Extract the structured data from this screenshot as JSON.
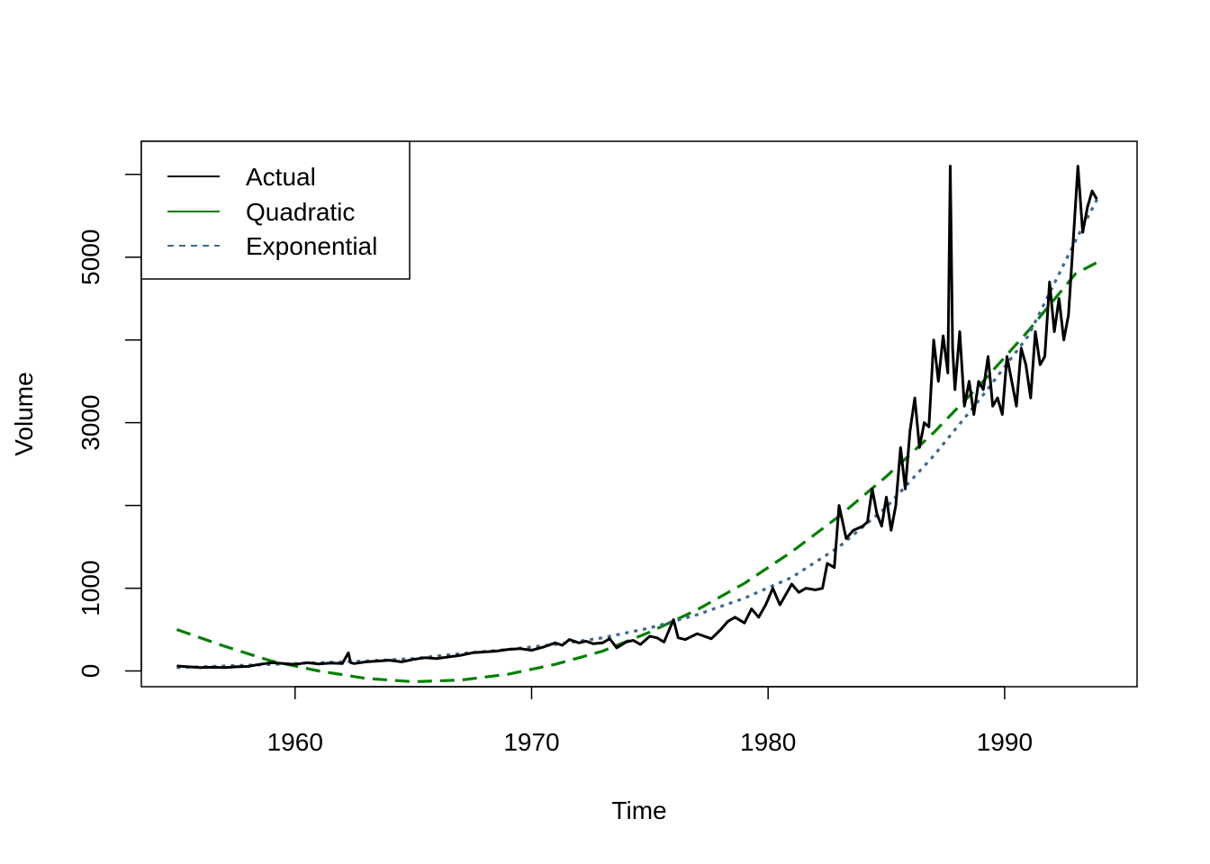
{
  "chart_data": {
    "type": "line",
    "title": "",
    "xlabel": "Time",
    "ylabel": "Volume",
    "xlim": [
      1953.5,
      1995.6
    ],
    "ylim": [
      -190,
      6400
    ],
    "xticks": [
      1960,
      1970,
      1980,
      1990
    ],
    "xtick_labels": [
      "1960",
      "1970",
      "1980",
      "1990"
    ],
    "yticks": [
      0,
      1000,
      2000,
      3000,
      4000,
      5000,
      6000
    ],
    "ytick_labels": [
      "0",
      "1000",
      "",
      "3000",
      "",
      "5000",
      ""
    ],
    "legend": {
      "position": "top-left",
      "entries": [
        {
          "label": "Actual",
          "color": "#000000",
          "style": "solid"
        },
        {
          "label": "Quadratic",
          "color": "#008000",
          "style": "dashed"
        },
        {
          "label": "Exponential",
          "color": "#3E6890",
          "style": "dotted"
        }
      ]
    },
    "series": [
      {
        "name": "Actual",
        "color": "#000000",
        "style": "solid",
        "x": [
          1955.0,
          1955.5,
          1956.0,
          1956.5,
          1957.0,
          1957.5,
          1958.0,
          1958.5,
          1959.0,
          1959.5,
          1960.0,
          1960.5,
          1961.0,
          1961.5,
          1962.0,
          1962.25,
          1962.35,
          1962.5,
          1963.0,
          1963.5,
          1964.0,
          1964.5,
          1965.0,
          1965.5,
          1966.0,
          1966.5,
          1967.0,
          1967.5,
          1968.0,
          1968.5,
          1969.0,
          1969.5,
          1970.0,
          1970.5,
          1971.0,
          1971.3,
          1971.6,
          1972.0,
          1972.3,
          1972.6,
          1973.0,
          1973.3,
          1973.6,
          1974.0,
          1974.3,
          1974.6,
          1975.0,
          1975.3,
          1975.6,
          1976.0,
          1976.2,
          1976.5,
          1977.0,
          1977.3,
          1977.6,
          1978.0,
          1978.3,
          1978.6,
          1979.0,
          1979.3,
          1979.6,
          1979.9,
          1980.2,
          1980.5,
          1980.8,
          1981.0,
          1981.3,
          1981.6,
          1982.0,
          1982.3,
          1982.5,
          1982.8,
          1983.0,
          1983.3,
          1983.6,
          1984.0,
          1984.2,
          1984.4,
          1984.6,
          1984.8,
          1985.0,
          1985.2,
          1985.4,
          1985.6,
          1985.8,
          1986.0,
          1986.2,
          1986.4,
          1986.6,
          1986.8,
          1987.0,
          1987.2,
          1987.4,
          1987.6,
          1987.7,
          1987.8,
          1987.9,
          1988.1,
          1988.3,
          1988.5,
          1988.7,
          1988.9,
          1989.1,
          1989.3,
          1989.5,
          1989.7,
          1989.9,
          1990.1,
          1990.3,
          1990.5,
          1990.7,
          1990.9,
          1991.1,
          1991.3,
          1991.5,
          1991.7,
          1991.9,
          1992.1,
          1992.3,
          1992.5,
          1992.7,
          1992.9,
          1993.1,
          1993.3,
          1993.5,
          1993.7,
          1993.9
        ],
        "values": [
          60,
          50,
          40,
          45,
          40,
          50,
          55,
          80,
          100,
          90,
          80,
          100,
          85,
          95,
          90,
          220,
          100,
          90,
          110,
          120,
          130,
          110,
          140,
          160,
          150,
          170,
          190,
          220,
          230,
          240,
          260,
          270,
          250,
          290,
          340,
          310,
          380,
          340,
          360,
          330,
          340,
          390,
          280,
          350,
          370,
          320,
          420,
          400,
          350,
          620,
          400,
          380,
          450,
          420,
          390,
          500,
          600,
          650,
          580,
          750,
          650,
          800,
          1000,
          800,
          950,
          1050,
          950,
          1000,
          980,
          1000,
          1300,
          1250,
          2000,
          1600,
          1700,
          1750,
          1800,
          2200,
          1900,
          1750,
          2100,
          1700,
          2000,
          2700,
          2200,
          2900,
          3300,
          2700,
          3000,
          2950,
          4000,
          3500,
          4050,
          3600,
          6100,
          3900,
          3400,
          4100,
          3200,
          3500,
          3100,
          3500,
          3400,
          3800,
          3200,
          3300,
          3100,
          3800,
          3500,
          3200,
          3900,
          3700,
          3300,
          4100,
          3700,
          3800,
          4700,
          4100,
          4500,
          4000,
          4300,
          5200,
          6100,
          5300,
          5600,
          5800,
          5700
        ]
      },
      {
        "name": "Quadratic",
        "color": "#008000",
        "style": "dashed",
        "x": [
          1955.0,
          1957.0,
          1959.0,
          1961.0,
          1963.0,
          1965.0,
          1967.0,
          1969.0,
          1971.0,
          1973.0,
          1975.0,
          1977.0,
          1979.0,
          1981.0,
          1983.0,
          1985.0,
          1987.0,
          1989.0,
          1991.0,
          1993.0,
          1994.0
        ],
        "values": [
          500,
          300,
          120,
          0,
          -90,
          -130,
          -110,
          -40,
          80,
          240,
          470,
          740,
          1060,
          1440,
          1870,
          2350,
          2880,
          3470,
          4110,
          4800,
          4950
        ]
      },
      {
        "name": "Exponential",
        "color": "#3E6890",
        "style": "dotted",
        "x": [
          1955.0,
          1957.0,
          1959.0,
          1961.0,
          1963.0,
          1965.0,
          1967.0,
          1969.0,
          1971.0,
          1973.0,
          1975.0,
          1977.0,
          1979.0,
          1981.0,
          1983.0,
          1985.0,
          1987.0,
          1989.0,
          1991.0,
          1993.0,
          1994.0
        ],
        "values": [
          40,
          60,
          80,
          100,
          120,
          150,
          210,
          260,
          320,
          400,
          520,
          680,
          880,
          1130,
          1500,
          1980,
          2600,
          3300,
          4050,
          5200,
          5750
        ]
      }
    ]
  }
}
